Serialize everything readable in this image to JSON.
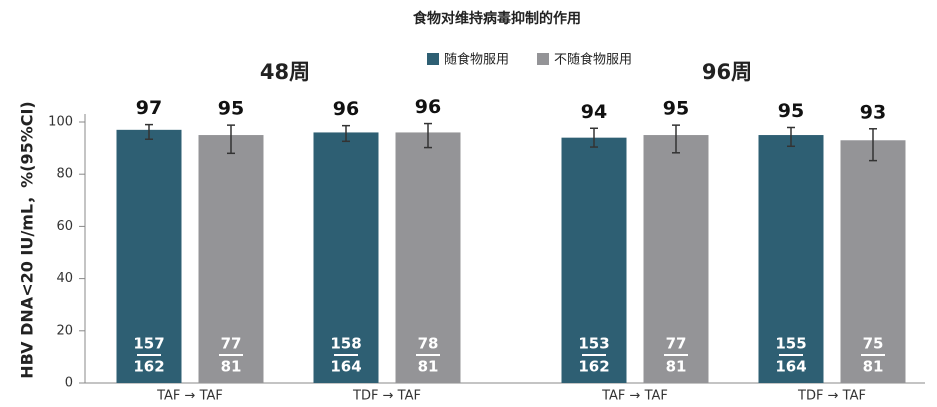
{
  "chart_data": {
    "type": "bar",
    "title": "食物对维持病毒抑制的作用",
    "ylabel": "HBV DNA<20 IU/mL，%(95%CI)",
    "ylim": [
      0,
      100
    ],
    "yticks": [
      0,
      20,
      40,
      60,
      80,
      100
    ],
    "panel_titles": [
      "48周",
      "96周"
    ],
    "categories": [
      "TAF → TAF",
      "TDF → TAF",
      "TAF → TAF",
      "TDF → TAF"
    ],
    "series": [
      {
        "name": "随食物服用",
        "color": "#2e5f73",
        "values": [
          97,
          96,
          94,
          95
        ],
        "ci_low": [
          93.4,
          92.6,
          90.4,
          90.7
        ],
        "ci_high": [
          99.0,
          98.6,
          97.6,
          97.9
        ],
        "numerators": [
          157,
          158,
          153,
          155
        ],
        "denominators": [
          162,
          164,
          162,
          164
        ]
      },
      {
        "name": "不随食物服用",
        "color": "#949497",
        "values": [
          95,
          96,
          95,
          93
        ],
        "ci_low": [
          88.0,
          90.2,
          88.2,
          85.2
        ],
        "ci_high": [
          98.8,
          99.4,
          98.8,
          97.4
        ],
        "numerators": [
          77,
          78,
          77,
          75
        ],
        "denominators": [
          81,
          81,
          81,
          81
        ]
      }
    ]
  }
}
